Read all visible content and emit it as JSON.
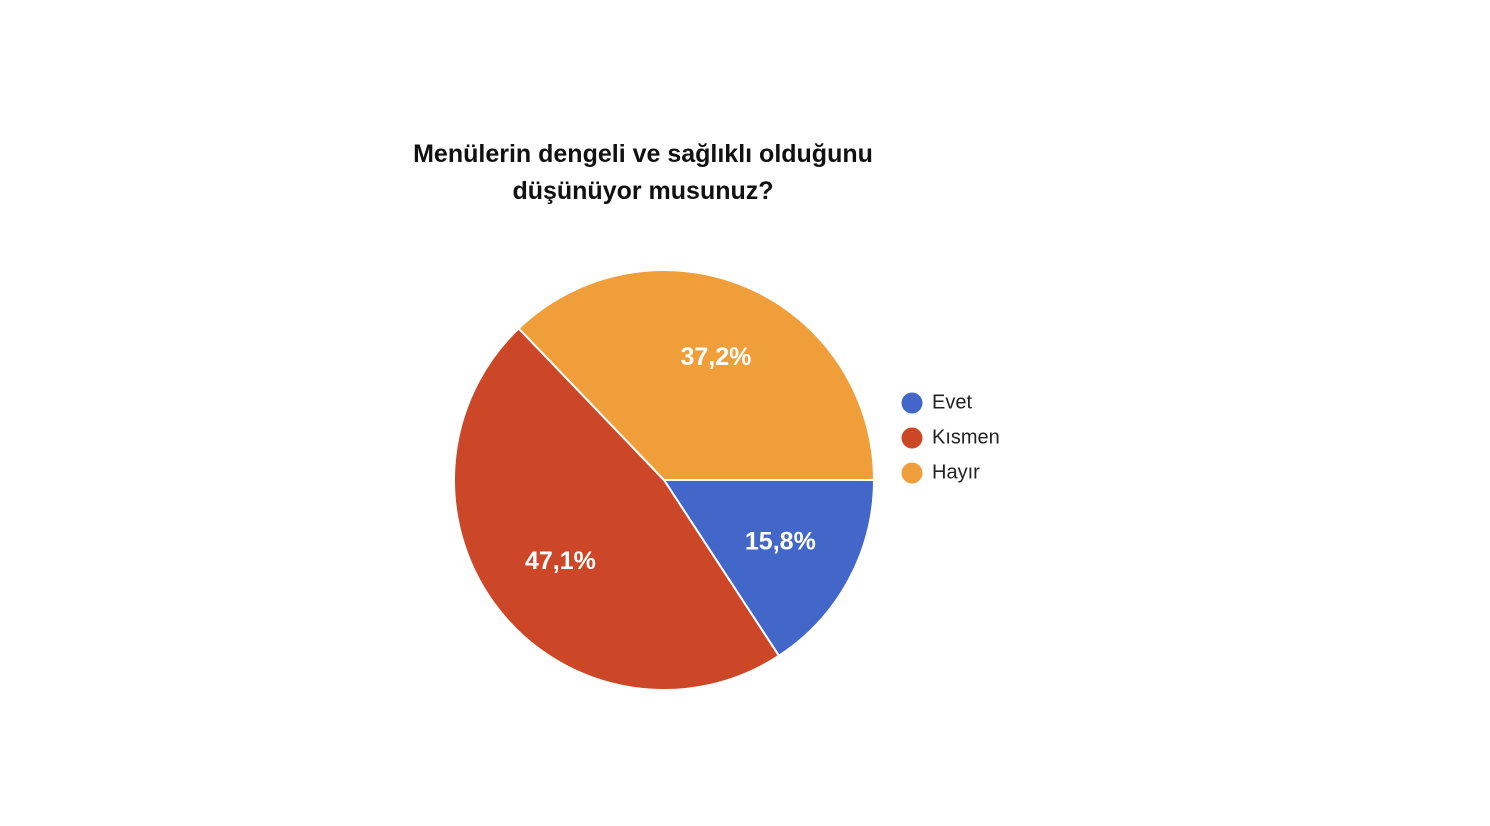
{
  "chart_data": {
    "type": "pie",
    "title": "Menülerin dengeli ve sağlıklı olduğunu düşünüyor musunuz?",
    "categories": [
      "Evet",
      "Kısmen",
      "Hayır"
    ],
    "values": [
      15.8,
      47.1,
      37.2
    ],
    "value_labels": [
      "15,8%",
      "47,1%",
      "37,2%"
    ],
    "colors": [
      "#4267c8",
      "#cc4628",
      "#f09e3a"
    ],
    "legend": "right"
  }
}
